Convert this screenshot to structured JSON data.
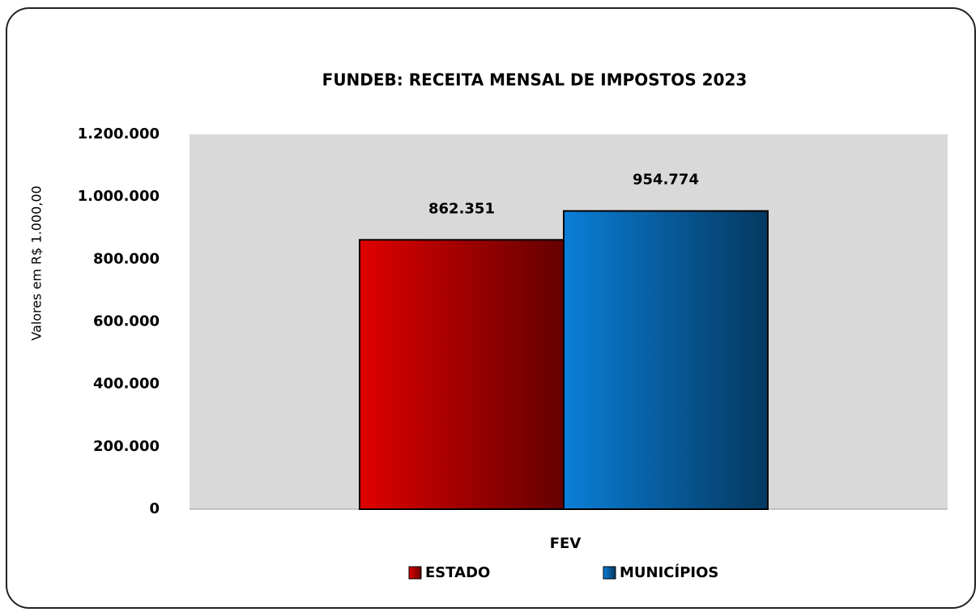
{
  "chart_data": {
    "type": "bar",
    "title": "FUNDEB: RECEITA MENSAL DE IMPOSTOS 2023",
    "ylabel": "Valores em R$ 1.000,00",
    "categories": [
      "FEV"
    ],
    "series": [
      {
        "name": "ESTADO",
        "color": "#e00000",
        "values": [
          862351
        ],
        "value_labels": [
          "862.351"
        ]
      },
      {
        "name": "MUNICÍPIOS",
        "color": "#0a7fd8",
        "values": [
          954774
        ],
        "value_labels": [
          "954.774"
        ]
      }
    ],
    "ylim": [
      0,
      1200000
    ],
    "yticks": [
      0,
      {
        "value": 200000,
        "label": "200.000"
      },
      {
        "value": 400000,
        "label": "400.000"
      },
      {
        "value": 600000,
        "label": "600.000"
      },
      {
        "value": 800000,
        "label": "800.000"
      },
      {
        "value": 1000000,
        "label": "1.000.000"
      },
      {
        "value": 1200000,
        "label": "1.200.000"
      }
    ],
    "grid": false,
    "legend": "bottom"
  }
}
